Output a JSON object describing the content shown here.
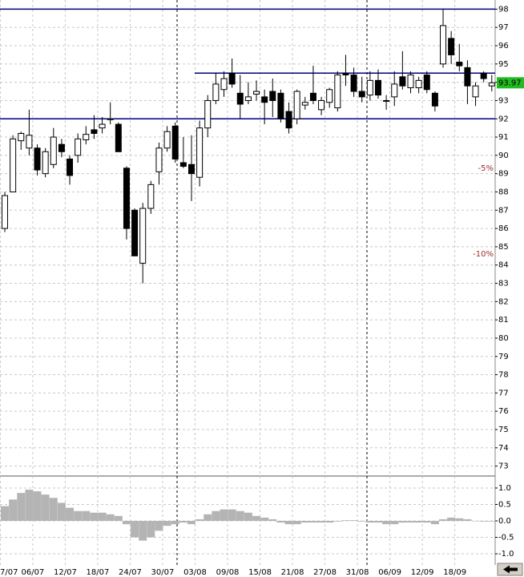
{
  "chart_data": [
    {
      "type": "candlestick",
      "open": [
        86.0,
        88.0,
        90.8,
        90.4,
        90.4,
        89.0,
        89.5,
        90.6,
        89.8,
        90.0,
        90.85,
        91.4,
        91.5,
        91.95,
        91.7,
        89.3,
        87.0,
        84.1,
        87.1,
        89.1,
        90.4,
        91.6,
        89.6,
        89.5,
        88.8,
        91.5,
        93.0,
        93.6,
        94.5,
        93.4,
        93.0,
        93.35,
        93.2,
        93.5,
        93.4,
        92.4,
        92.0,
        92.75,
        93.4,
        92.5,
        92.9,
        92.6,
        94.5,
        94.4,
        93.5,
        93.3,
        94.1,
        93.0,
        93.2,
        94.3,
        93.7,
        93.7,
        94.4,
        93.4,
        95.0,
        96.4,
        95.1,
        94.8,
        93.2,
        94.5,
        93.8
      ],
      "high": [
        88.0,
        91.1,
        91.3,
        92.5,
        90.6,
        90.4,
        91.5,
        90.9,
        90.0,
        91.2,
        91.6,
        92.2,
        92.1,
        92.9,
        91.8,
        89.4,
        87.1,
        87.4,
        88.6,
        90.7,
        91.6,
        91.8,
        91.0,
        91.1,
        91.9,
        93.3,
        94.5,
        94.6,
        95.3,
        94.4,
        94.0,
        94.1,
        93.6,
        94.2,
        93.6,
        92.9,
        93.6,
        93.2,
        94.9,
        93.2,
        93.7,
        94.6,
        95.5,
        94.8,
        94.3,
        94.6,
        94.7,
        93.3,
        94.6,
        95.7,
        94.6,
        94.3,
        94.6,
        93.5,
        98.0,
        96.8,
        96.1,
        95.2,
        94.0,
        94.6,
        94.4
      ],
      "low": [
        85.8,
        88.0,
        90.3,
        90.0,
        88.9,
        88.8,
        89.3,
        89.9,
        88.4,
        89.6,
        90.6,
        90.9,
        91.2,
        91.7,
        90.2,
        85.4,
        84.5,
        83.0,
        86.8,
        88.4,
        90.2,
        89.6,
        89.3,
        87.5,
        88.3,
        91.0,
        92.8,
        93.2,
        93.7,
        92.0,
        92.8,
        93.0,
        91.7,
        92.1,
        91.8,
        91.2,
        91.7,
        92.5,
        92.8,
        92.2,
        92.6,
        92.4,
        93.8,
        93.2,
        92.9,
        93.0,
        93.1,
        92.5,
        92.7,
        93.6,
        93.4,
        93.4,
        93.4,
        92.4,
        94.8,
        95.0,
        94.6,
        92.8,
        92.7,
        94.0,
        93.5
      ],
      "close": [
        87.8,
        90.9,
        91.2,
        91.1,
        89.2,
        90.2,
        91.0,
        90.2,
        88.9,
        90.9,
        91.15,
        91.2,
        91.7,
        92.0,
        90.2,
        86.0,
        84.5,
        87.1,
        88.4,
        90.4,
        91.3,
        89.8,
        89.4,
        89.0,
        91.5,
        93.0,
        93.9,
        94.2,
        93.9,
        92.8,
        93.2,
        93.5,
        92.9,
        93.0,
        92.0,
        91.5,
        93.5,
        92.9,
        93.0,
        93.0,
        93.6,
        94.4,
        94.4,
        93.5,
        93.2,
        94.1,
        93.3,
        93.0,
        93.9,
        93.8,
        94.4,
        94.1,
        93.6,
        92.7,
        97.1,
        95.5,
        94.9,
        93.8,
        93.8,
        94.2,
        93.97
      ],
      "up_color": "#ffffff",
      "down_color": "#000000",
      "ylim": [
        72.5,
        98.5
      ],
      "yticks": [
        73,
        74,
        75,
        76,
        77,
        78,
        79,
        80,
        81,
        82,
        83,
        84,
        85,
        86,
        87,
        88,
        89,
        90,
        91,
        92,
        93,
        94,
        95,
        96,
        97,
        98
      ],
      "xticks": [
        {
          "value": -1,
          "label": "7/07"
        },
        {
          "value": 3,
          "label": "06/07"
        },
        {
          "value": 7,
          "label": "12/07"
        },
        {
          "value": 11,
          "label": "18/07"
        },
        {
          "value": 15,
          "label": "24/07"
        },
        {
          "value": 19,
          "label": "30/07"
        },
        {
          "value": 23,
          "label": "03/08"
        },
        {
          "value": 27,
          "label": "09/08"
        },
        {
          "value": 31,
          "label": "15/08"
        },
        {
          "value": 35,
          "label": "21/08"
        },
        {
          "value": 39,
          "label": "27/08"
        },
        {
          "value": 43,
          "label": "31/08"
        },
        {
          "value": 47,
          "label": "06/09"
        },
        {
          "value": 51,
          "label": "12/09"
        },
        {
          "value": 55,
          "label": "18/09"
        }
      ],
      "grid": true,
      "hlines": [
        98,
        94.5,
        92
      ],
      "hline_color": "#000080",
      "annotations": [
        {
          "value": 89.3,
          "label": "-5%"
        },
        {
          "value": 84.6,
          "label": "-10%"
        }
      ],
      "annotation_color": "#a03030",
      "last_price": 93.97,
      "last_price_color": "#22bb22"
    },
    {
      "type": "bar",
      "values": [
        0.45,
        0.65,
        0.85,
        0.95,
        0.9,
        0.8,
        0.7,
        0.55,
        0.4,
        0.3,
        0.3,
        0.25,
        0.25,
        0.2,
        0.15,
        -0.1,
        -0.5,
        -0.6,
        -0.5,
        -0.3,
        -0.15,
        -0.1,
        -0.05,
        -0.1,
        0.05,
        0.2,
        0.3,
        0.35,
        0.35,
        0.3,
        0.25,
        0.15,
        0.1,
        0.05,
        -0.05,
        -0.1,
        -0.1,
        -0.05,
        -0.05,
        -0.05,
        -0.05,
        -0.02,
        0.02,
        0.02,
        -0.02,
        -0.05,
        -0.05,
        -0.1,
        -0.1,
        -0.05,
        -0.05,
        -0.05,
        -0.05,
        -0.1,
        0.05,
        0.1,
        0.08,
        0.05,
        0.0,
        -0.02,
        -0.02
      ],
      "color": "#b4b4b4",
      "ylim": [
        -1.34,
        1.34
      ],
      "yticks": [
        {
          "value": 1.0,
          "label": "1.0"
        },
        {
          "value": 0.5,
          "label": "0.5"
        },
        {
          "value": 0.0,
          "label": "0.0"
        },
        {
          "value": -0.5,
          "label": "-0.5"
        },
        {
          "value": -1.0,
          "label": "-1.0"
        }
      ],
      "grid": true
    }
  ]
}
